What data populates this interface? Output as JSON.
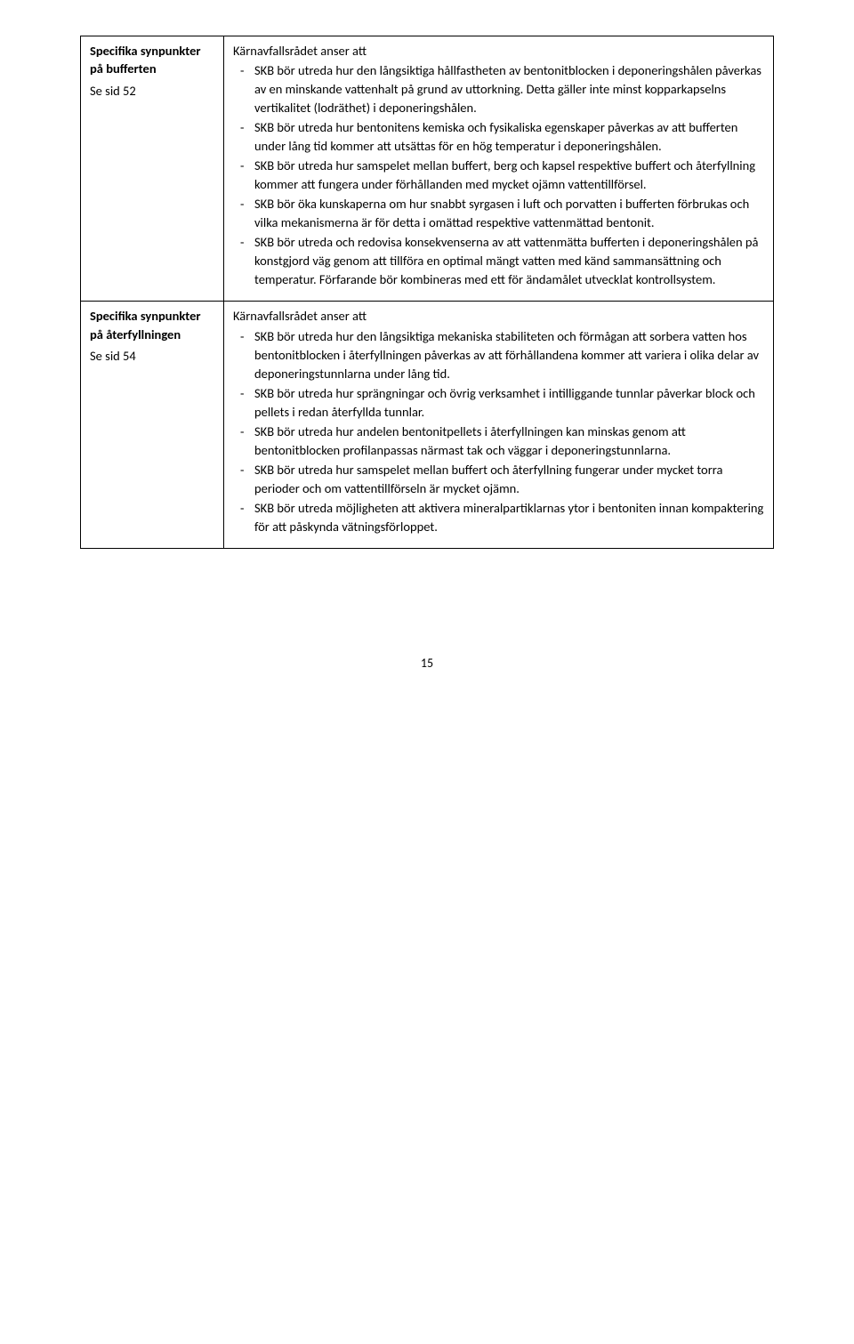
{
  "row1": {
    "left_title": "Specifika synpunkter på bufferten",
    "left_sub": "Se sid 52",
    "intro": "Kärnavfallsrådet anser att",
    "items": [
      "SKB bör utreda hur den långsiktiga hållfastheten av bentonitblocken i deponeringshålen påverkas av en minskande vattenhalt på grund av uttorkning. Detta gäller inte minst kopparkapselns vertikalitet (lodräthet) i deponeringshålen.",
      "SKB bör utreda hur bentonitens kemiska och fysikaliska egenskaper påverkas av att bufferten under lång tid kommer att utsättas för en hög temperatur i deponeringshålen.",
      "SKB bör utreda hur samspelet mellan buffert, berg och kapsel respektive buffert och återfyllning kommer att fungera under förhållanden med mycket ojämn vattentillförsel.",
      "SKB bör öka kunskaperna om hur snabbt syrgasen i luft och porvatten i bufferten förbrukas och vilka mekanismerna är för detta i omättad respektive vattenmättad bentonit.",
      "SKB bör utreda och redovisa konsekvenserna av att vattenmätta bufferten i deponeringshålen på konstgjord väg genom att tillföra en optimal mängt vatten med känd sammansättning och temperatur. Förfarande bör kombineras med ett för ändamålet utvecklat kontrollsystem."
    ]
  },
  "row2": {
    "left_title": "Specifika synpunkter på återfyllningen",
    "left_sub": "Se sid 54",
    "intro": "Kärnavfallsrådet anser att",
    "items": [
      "SKB bör utreda hur den långsiktiga mekaniska stabiliteten och förmågan att sorbera vatten hos bentonitblocken i återfyllningen påverkas av att förhållandena kommer att variera i olika delar av deponeringstunnlarna under lång tid.",
      "SKB bör utreda hur sprängningar och övrig verksamhet i intilliggande tunnlar påverkar block och pellets i redan återfyllda tunnlar.",
      "SKB bör utreda hur andelen bentonitpellets i återfyllningen kan minskas genom att bentonitblocken profilanpassas närmast tak och väggar i deponeringstunnlarna.",
      "SKB bör utreda hur samspelet mellan buffert och återfyllning fungerar under mycket torra perioder och om vattentillförseln är mycket ojämn.",
      "SKB bör utreda möjligheten att aktivera mineralpartiklarnas ytor i bentoniten innan kompaktering för att påskynda vätningsförloppet."
    ]
  },
  "page_number": "15"
}
